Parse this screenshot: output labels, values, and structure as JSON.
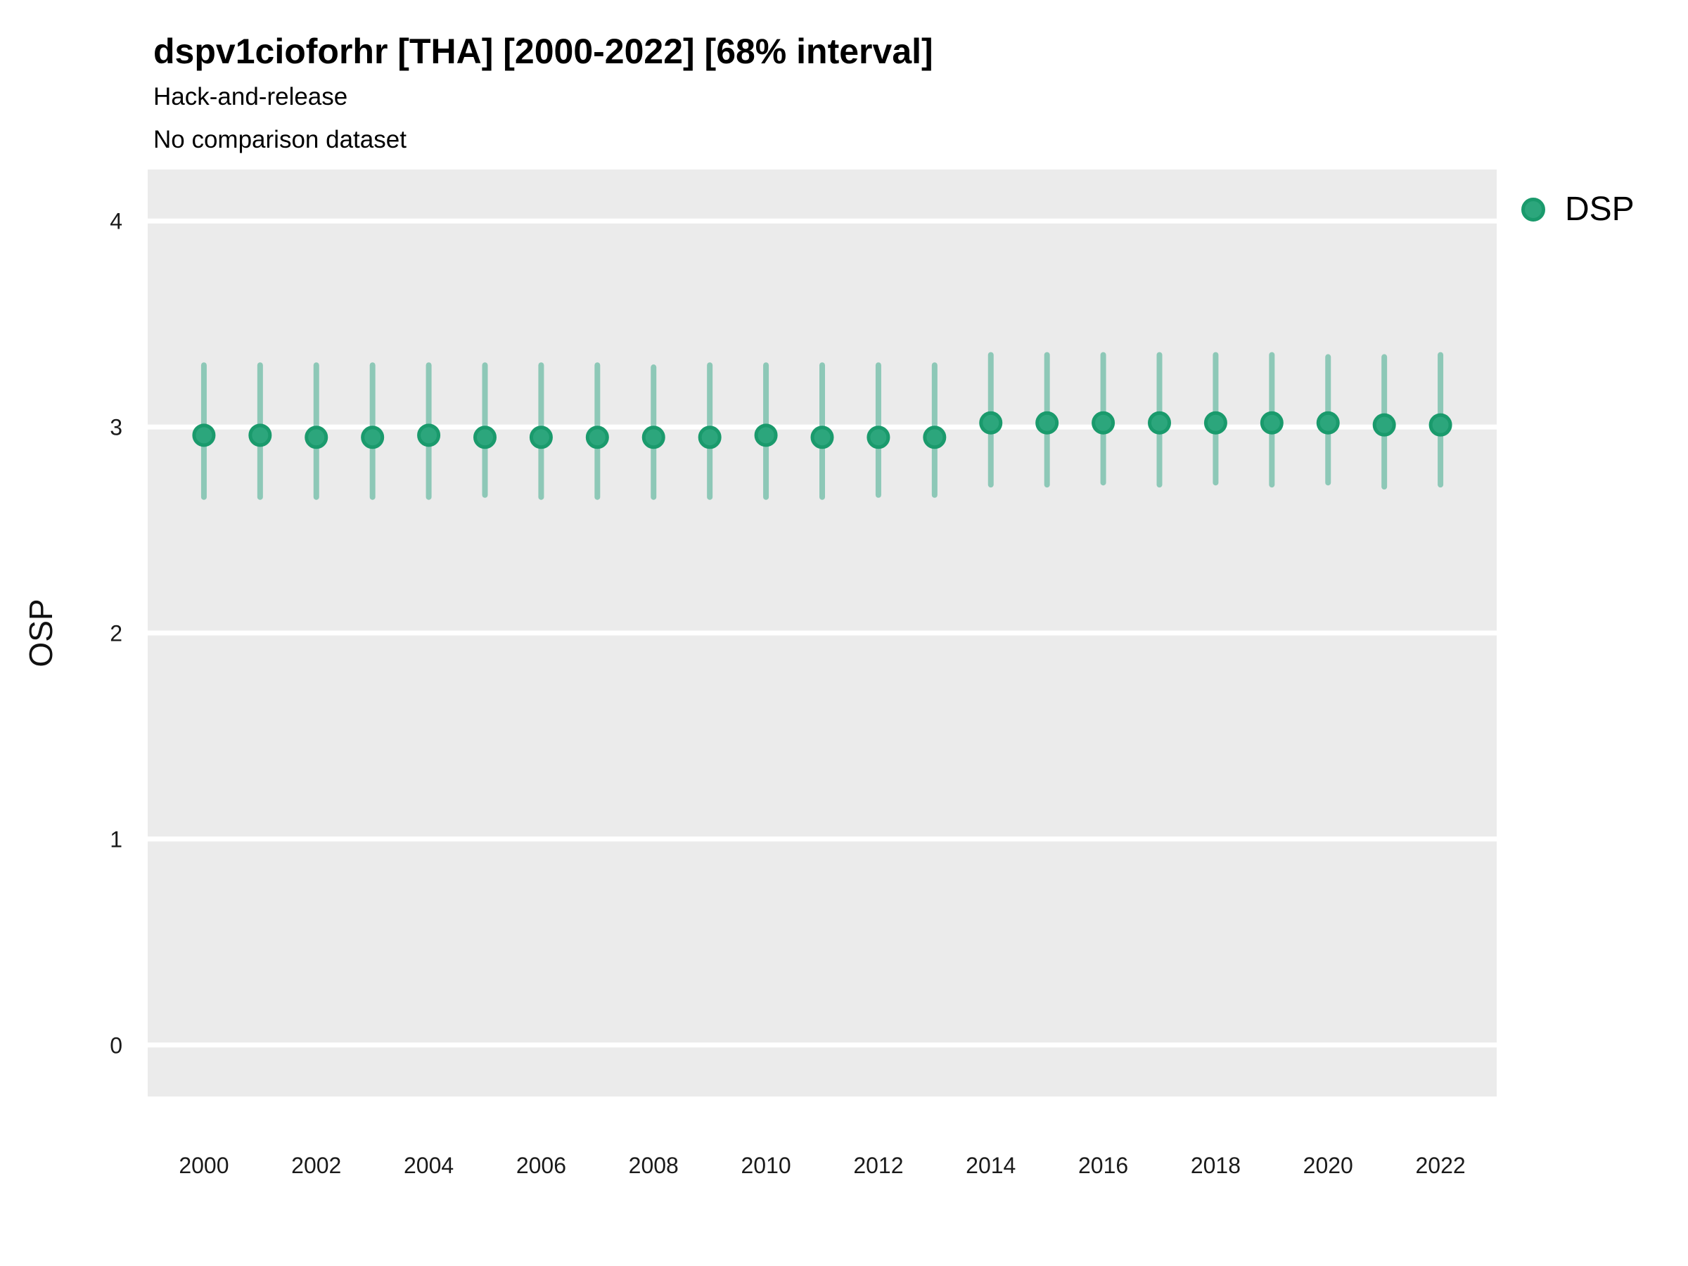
{
  "chart_data": {
    "type": "scatter",
    "variant": "pointrange",
    "title": "dspv1cioforhr [THA] [2000-2022] [68% interval]",
    "subtitle1": "Hack-and-release",
    "subtitle2": "No comparison dataset",
    "xlabel": "",
    "ylabel": "OSP",
    "interval_level": "68%",
    "country": "THA",
    "legend": {
      "label": "DSP",
      "position": "right"
    },
    "grid": "horizontal-major-only",
    "xlim": [
      1999,
      2023
    ],
    "ylim": [
      -0.25,
      4.25
    ],
    "x_tick_labels": [
      "2000",
      "2002",
      "2004",
      "2006",
      "2008",
      "2010",
      "2012",
      "2014",
      "2016",
      "2018",
      "2020",
      "2022"
    ],
    "x_tick_years": [
      2000,
      2002,
      2004,
      2006,
      2008,
      2010,
      2012,
      2014,
      2016,
      2018,
      2020,
      2022
    ],
    "y_tick_labels": [
      "0",
      "1",
      "2",
      "3",
      "4"
    ],
    "y_tick_values": [
      0,
      1,
      2,
      3,
      4
    ],
    "series": [
      {
        "name": "DSP",
        "points": [
          {
            "year": 2000,
            "mid": 2.96,
            "lo": 2.66,
            "hi": 3.3
          },
          {
            "year": 2001,
            "mid": 2.96,
            "lo": 2.66,
            "hi": 3.3
          },
          {
            "year": 2002,
            "mid": 2.95,
            "lo": 2.66,
            "hi": 3.3
          },
          {
            "year": 2003,
            "mid": 2.95,
            "lo": 2.66,
            "hi": 3.3
          },
          {
            "year": 2004,
            "mid": 2.96,
            "lo": 2.66,
            "hi": 3.3
          },
          {
            "year": 2005,
            "mid": 2.95,
            "lo": 2.67,
            "hi": 3.3
          },
          {
            "year": 2006,
            "mid": 2.95,
            "lo": 2.66,
            "hi": 3.3
          },
          {
            "year": 2007,
            "mid": 2.95,
            "lo": 2.66,
            "hi": 3.3
          },
          {
            "year": 2008,
            "mid": 2.95,
            "lo": 2.66,
            "hi": 3.29
          },
          {
            "year": 2009,
            "mid": 2.95,
            "lo": 2.66,
            "hi": 3.3
          },
          {
            "year": 2010,
            "mid": 2.96,
            "lo": 2.66,
            "hi": 3.3
          },
          {
            "year": 2011,
            "mid": 2.95,
            "lo": 2.66,
            "hi": 3.3
          },
          {
            "year": 2012,
            "mid": 2.95,
            "lo": 2.67,
            "hi": 3.3
          },
          {
            "year": 2013,
            "mid": 2.95,
            "lo": 2.67,
            "hi": 3.3
          },
          {
            "year": 2014,
            "mid": 3.02,
            "lo": 2.72,
            "hi": 3.35
          },
          {
            "year": 2015,
            "mid": 3.02,
            "lo": 2.72,
            "hi": 3.35
          },
          {
            "year": 2016,
            "mid": 3.02,
            "lo": 2.73,
            "hi": 3.35
          },
          {
            "year": 2017,
            "mid": 3.02,
            "lo": 2.72,
            "hi": 3.35
          },
          {
            "year": 2018,
            "mid": 3.02,
            "lo": 2.73,
            "hi": 3.35
          },
          {
            "year": 2019,
            "mid": 3.02,
            "lo": 2.72,
            "hi": 3.35
          },
          {
            "year": 2020,
            "mid": 3.02,
            "lo": 2.73,
            "hi": 3.34
          },
          {
            "year": 2021,
            "mid": 3.01,
            "lo": 2.71,
            "hi": 3.34
          },
          {
            "year": 2022,
            "mid": 3.01,
            "lo": 2.72,
            "hi": 3.35
          }
        ]
      }
    ],
    "colors": {
      "panel_bg": "#EBEBEB",
      "gridline": "#FFFFFF",
      "point_fill": "#2CA67C",
      "point_stroke": "#1A9A6C",
      "interval_line": "rgba(27,158,119,0.45)",
      "tick_text": "#1A1A1A",
      "title_text": "#000000"
    }
  }
}
